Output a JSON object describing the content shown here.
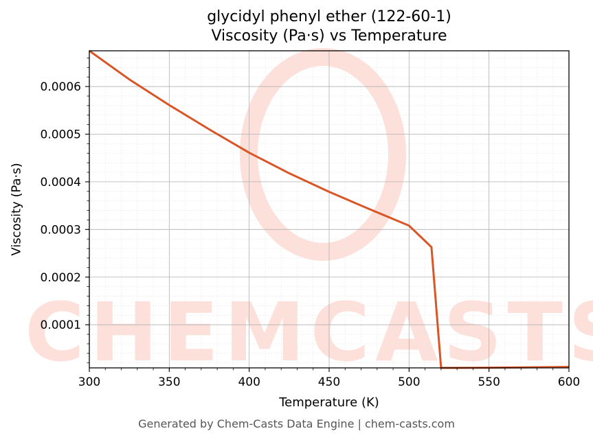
{
  "chart_data": {
    "type": "line",
    "title": "glycidyl phenyl ether (122-60-1)",
    "subtitle": "Viscosity (Pa·s) vs Temperature",
    "xlabel": "Temperature (K)",
    "ylabel": "Viscosity (Pa·s)",
    "xlim": [
      300,
      600
    ],
    "ylim": [
      9.5e-06,
      0.000675
    ],
    "x_ticks": [
      300,
      350,
      400,
      450,
      500,
      550,
      600
    ],
    "x_tick_labels": [
      "300",
      "350",
      "400",
      "450",
      "500",
      "550",
      "600"
    ],
    "y_ticks": [
      0.0001,
      0.0002,
      0.0003,
      0.0004,
      0.0005,
      0.0006
    ],
    "y_tick_labels": [
      "0.0001",
      "0.0002",
      "0.0003",
      "0.0004",
      "0.0005",
      "0.0006"
    ],
    "grid": true,
    "legend": "none",
    "series": [
      {
        "color": "#d95525",
        "x": [
          300,
          325,
          350,
          375,
          400,
          425,
          450,
          475,
          500,
          514,
          520,
          530,
          550,
          600
        ],
        "y": [
          0.000675,
          0.000615,
          0.000561,
          0.00051,
          0.000461,
          0.000418,
          0.000379,
          0.000343,
          0.000308,
          0.000263,
          9.5e-06,
          9.5e-06,
          1e-05,
          1.15e-05
        ]
      }
    ]
  },
  "watermark": {
    "text": "CHEMCASTS"
  },
  "footer": "Generated by Chem-Casts Data Engine | chem-casts.com"
}
